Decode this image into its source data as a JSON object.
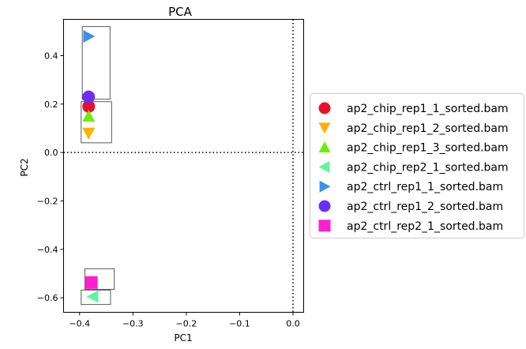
{
  "chart_data": {
    "type": "scatter",
    "title": "PCA",
    "xlabel": "PC1",
    "ylabel": "PC2",
    "xlim": [
      -0.43,
      0.02
    ],
    "ylim": [
      -0.66,
      0.55
    ],
    "xticks": [
      -0.4,
      -0.3,
      -0.2,
      -0.1,
      0.0
    ],
    "xtick_labels": [
      "−0.4",
      "−0.3",
      "−0.2",
      "−0.1",
      "0.0"
    ],
    "yticks": [
      -0.6,
      -0.4,
      -0.2,
      0.0,
      0.2,
      0.4
    ],
    "ytick_labels": [
      "−0.6",
      "−0.4",
      "−0.2",
      "0.0",
      "0.2",
      "0.4"
    ],
    "reference_lines": {
      "x": 0.0,
      "y": 0.0,
      "style": "dotted"
    },
    "series": [
      {
        "name": "ap2_chip_rep1_1_sorted.bam",
        "x": -0.383,
        "y": 0.19,
        "marker": "circle",
        "color": "#e8112d"
      },
      {
        "name": "ap2_chip_rep1_2_sorted.bam",
        "x": -0.383,
        "y": 0.08,
        "marker": "triangle-down",
        "color": "#ffb000"
      },
      {
        "name": "ap2_chip_rep1_3_sorted.bam",
        "x": -0.383,
        "y": 0.15,
        "marker": "triangle-up",
        "color": "#6cf000"
      },
      {
        "name": "ap2_chip_rep2_1_sorted.bam",
        "x": -0.375,
        "y": -0.595,
        "marker": "triangle-left",
        "color": "#5cf5a0"
      },
      {
        "name": "ap2_ctrl_rep1_1_sorted.bam",
        "x": -0.383,
        "y": 0.48,
        "marker": "triangle-right",
        "color": "#3b8ff0"
      },
      {
        "name": "ap2_ctrl_rep1_2_sorted.bam",
        "x": -0.383,
        "y": 0.23,
        "marker": "circle",
        "color": "#6a2ff5"
      },
      {
        "name": "ap2_ctrl_rep2_1_sorted.bam",
        "x": -0.378,
        "y": -0.537,
        "marker": "square",
        "color": "#ff1fcf"
      }
    ],
    "cluster_boxes": [
      {
        "x": [
          -0.395,
          -0.343
        ],
        "y": [
          0.22,
          0.52
        ]
      },
      {
        "x": [
          -0.397,
          -0.34
        ],
        "y": [
          0.04,
          0.21
        ]
      },
      {
        "x": [
          -0.39,
          -0.335
        ],
        "y": [
          -0.565,
          -0.48
        ]
      },
      {
        "x": [
          -0.397,
          -0.342
        ],
        "y": [
          -0.628,
          -0.568
        ]
      }
    ],
    "legend_position": "right"
  }
}
